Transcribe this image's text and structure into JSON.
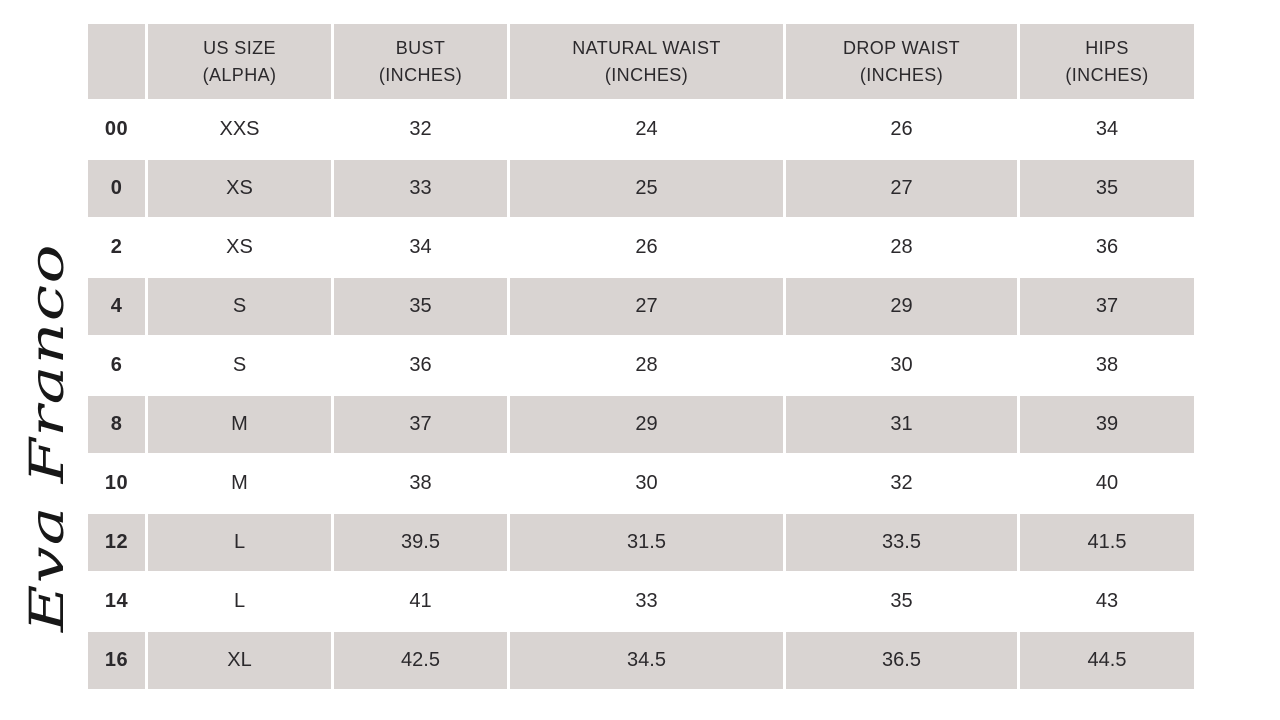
{
  "brand": {
    "logo_text": "Eva Franco"
  },
  "colors": {
    "header_bg": "#d9d4d2",
    "stripe_row_bg": "#d9d4d2",
    "plain_row_bg": "#ffffff",
    "text": "#2b292c",
    "page_bg": "#ffffff"
  },
  "chart_data": {
    "type": "table",
    "columns": [
      "",
      "US SIZE\n(ALPHA)",
      "BUST\n(INCHES)",
      "NATURAL WAIST\n(INCHES)",
      "DROP WAIST\n(INCHES)",
      "HIPS\n(INCHES)"
    ],
    "rows": [
      [
        "00",
        "XXS",
        "32",
        "24",
        "26",
        "34"
      ],
      [
        "0",
        "XS",
        "33",
        "25",
        "27",
        "35"
      ],
      [
        "2",
        "XS",
        "34",
        "26",
        "28",
        "36"
      ],
      [
        "4",
        "S",
        "35",
        "27",
        "29",
        "37"
      ],
      [
        "6",
        "S",
        "36",
        "28",
        "30",
        "38"
      ],
      [
        "8",
        "M",
        "37",
        "29",
        "31",
        "39"
      ],
      [
        "10",
        "M",
        "38",
        "30",
        "32",
        "40"
      ],
      [
        "12",
        "L",
        "39.5",
        "31.5",
        "33.5",
        "41.5"
      ],
      [
        "14",
        "L",
        "41",
        "33",
        "35",
        "43"
      ],
      [
        "16",
        "XL",
        "42.5",
        "34.5",
        "36.5",
        "44.5"
      ]
    ],
    "layout": {
      "striped_rows": true,
      "header_position": "top",
      "row_label_column": true,
      "grid": "white dividers between cells"
    }
  }
}
